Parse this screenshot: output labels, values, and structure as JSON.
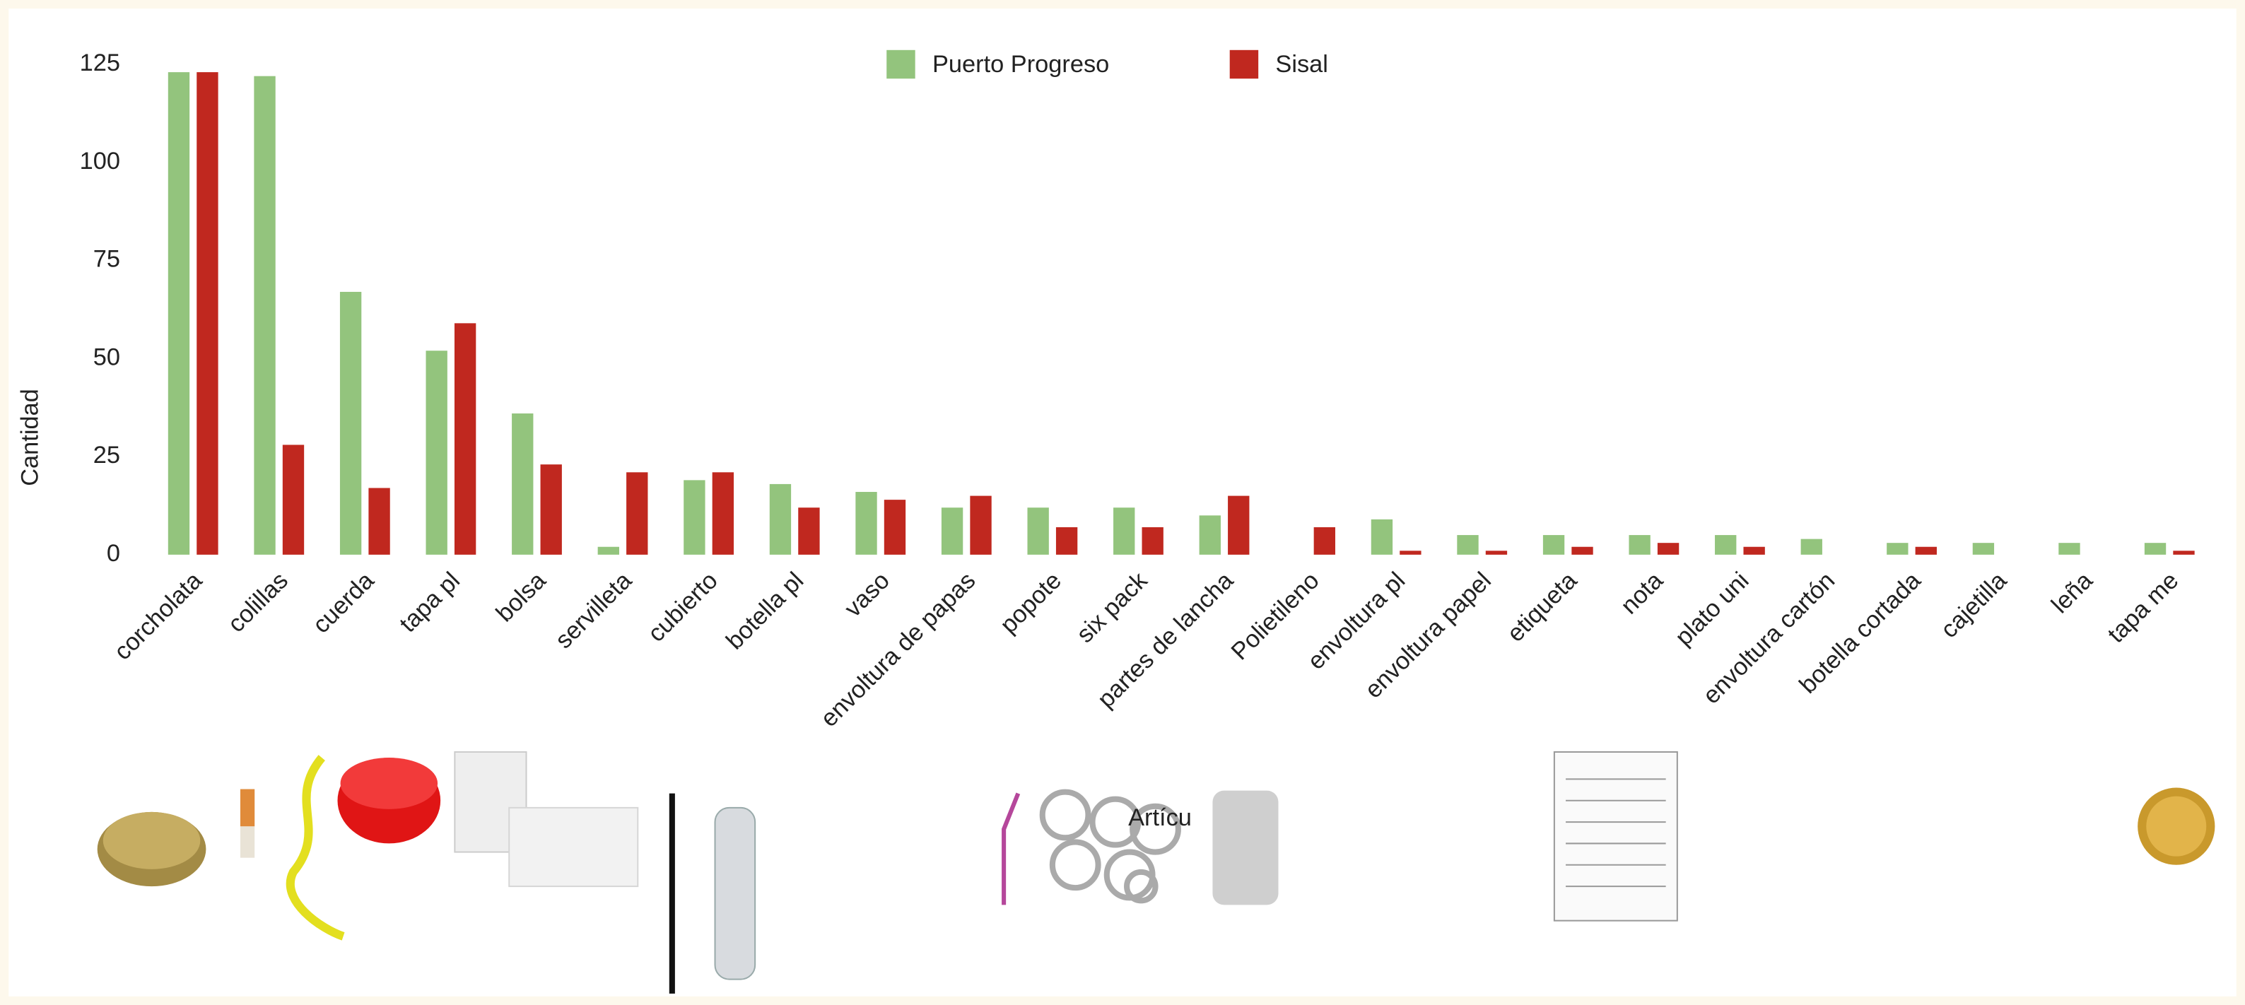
{
  "chart_data": {
    "type": "bar",
    "y_label": "Cantidad",
    "x_label": "Artícu",
    "categories": [
      "corcholata",
      "colillas",
      "cuerda",
      "tapa pl",
      "bolsa",
      "servilleta",
      "cubierto",
      "botella pl",
      "vaso",
      "envoltura de papas",
      "popote",
      "six pack",
      "partes de lancha",
      "Polietileno",
      "envoltura pl",
      "envoltura papel",
      "etiqueta",
      "nota",
      "plato uni",
      "envoltura cartón",
      "botella cortada",
      "cajetilla",
      "leña",
      "tapa me"
    ],
    "series": [
      {
        "name": "Puerto Progreso",
        "color": "#93c47d",
        "values": [
          123,
          122,
          67,
          52,
          36,
          2,
          19,
          18,
          16,
          12,
          12,
          12,
          10,
          0,
          9,
          5,
          5,
          5,
          5,
          4,
          3,
          3,
          3,
          3
        ]
      },
      {
        "name": "Sisal",
        "color": "#c0281f",
        "values": [
          123,
          28,
          17,
          59,
          23,
          21,
          21,
          12,
          14,
          15,
          7,
          7,
          15,
          7,
          1,
          1,
          2,
          3,
          2,
          0,
          2,
          0,
          0,
          1
        ]
      }
    ],
    "ylim": [
      0,
      125
    ],
    "yticks": [
      0,
      25,
      50,
      75,
      100,
      125
    ],
    "grid": false,
    "legend": "top"
  }
}
